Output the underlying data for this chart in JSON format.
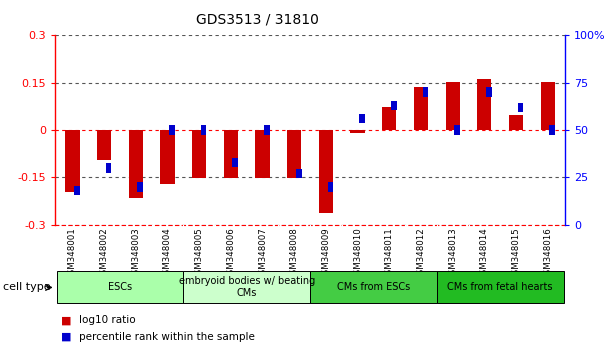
{
  "title": "GDS3513 / 31810",
  "samples": [
    "GSM348001",
    "GSM348002",
    "GSM348003",
    "GSM348004",
    "GSM348005",
    "GSM348006",
    "GSM348007",
    "GSM348008",
    "GSM348009",
    "GSM348010",
    "GSM348011",
    "GSM348012",
    "GSM348013",
    "GSM348014",
    "GSM348015",
    "GSM348016"
  ],
  "log10_ratio": [
    -0.195,
    -0.095,
    -0.215,
    -0.17,
    -0.152,
    -0.152,
    -0.152,
    -0.152,
    -0.262,
    -0.008,
    0.072,
    0.138,
    0.153,
    0.163,
    0.048,
    0.153
  ],
  "percentile_rank": [
    18,
    30,
    20,
    50,
    50,
    33,
    50,
    27,
    20,
    56,
    63,
    70,
    50,
    70,
    62,
    50
  ],
  "ylim_left": [
    -0.3,
    0.3
  ],
  "ylim_right": [
    0,
    100
  ],
  "yticks_left": [
    -0.3,
    -0.15,
    0.0,
    0.15,
    0.3
  ],
  "ytick_labels_left": [
    "-0.3",
    "-0.15",
    "0",
    "0.15",
    "0.3"
  ],
  "yticks_right": [
    0,
    25,
    50,
    75,
    100
  ],
  "ytick_labels_right": [
    "0",
    "25",
    "50",
    "75",
    "100%"
  ],
  "bar_color_red": "#cc0000",
  "bar_color_blue": "#0000cc",
  "dotted_color": "#555555",
  "cell_groups": [
    {
      "label": "ESCs",
      "start": 0,
      "end": 3,
      "color": "#aaffaa"
    },
    {
      "label": "embryoid bodies w/ beating\nCMs",
      "start": 4,
      "end": 7,
      "color": "#ccffcc"
    },
    {
      "label": "CMs from ESCs",
      "start": 8,
      "end": 11,
      "color": "#44cc44"
    },
    {
      "label": "CMs from fetal hearts",
      "start": 12,
      "end": 15,
      "color": "#22bb22"
    }
  ]
}
